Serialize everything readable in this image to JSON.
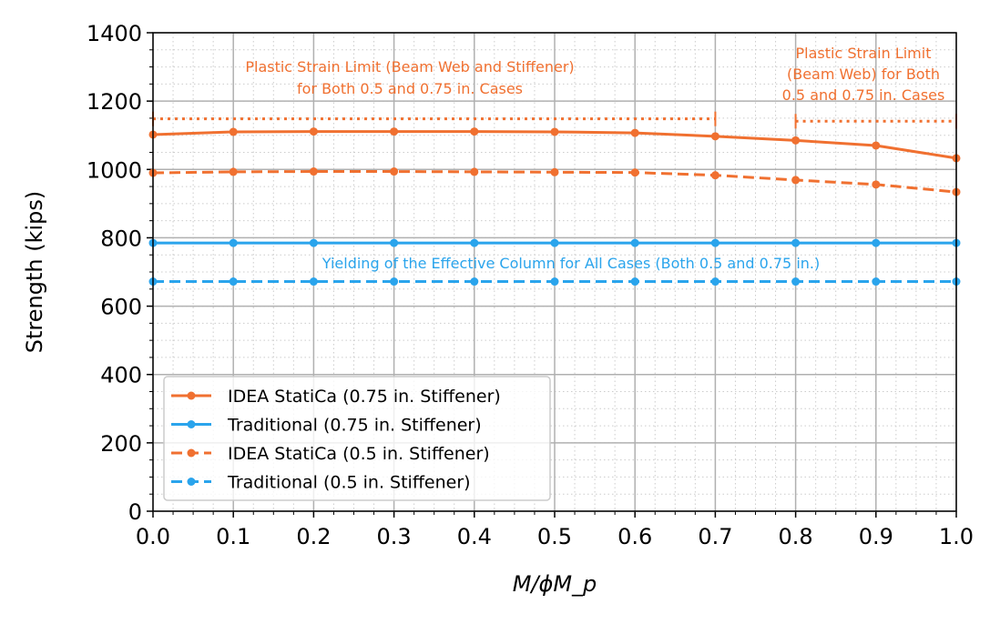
{
  "chart_data": {
    "type": "line",
    "xlabel": "M/ϕM_p",
    "ylabel": "Strength (kips)",
    "xlim": [
      0,
      1
    ],
    "ylim": [
      0,
      1400
    ],
    "xticks": [
      "0.0",
      "0.1",
      "0.2",
      "0.3",
      "0.4",
      "0.5",
      "0.6",
      "0.7",
      "0.8",
      "0.9",
      "1.0"
    ],
    "yticks": [
      "0",
      "200",
      "400",
      "600",
      "800",
      "1000",
      "1200",
      "1400"
    ],
    "grid": "major and minor",
    "legend_position": "lower-left",
    "x": [
      0,
      0.1,
      0.2,
      0.3,
      0.4,
      0.5,
      0.6,
      0.7,
      0.8,
      0.9,
      1.0
    ],
    "series": [
      {
        "name": "IDEA StatiCa (0.75 in. Stiffener)",
        "color": "#f07030",
        "style": "solid",
        "values": [
          1102,
          1110,
          1111,
          1111,
          1111,
          1110,
          1107,
          1097,
          1085,
          1070,
          1033
        ]
      },
      {
        "name": "Traditional (0.75 in. Stiffener)",
        "color": "#2aa4ec",
        "style": "solid",
        "values": [
          785,
          785,
          785,
          785,
          785,
          785,
          785,
          785,
          785,
          785,
          785
        ]
      },
      {
        "name": "IDEA StatiCa (0.5 in. Stiffener)",
        "color": "#f07030",
        "style": "dashed",
        "values": [
          990,
          993,
          994,
          994,
          993,
          992,
          991,
          983,
          969,
          956,
          934
        ]
      },
      {
        "name": "Traditional (0.5 in. Stiffener)",
        "color": "#2aa4ec",
        "style": "dashed",
        "values": [
          672,
          672,
          672,
          672,
          672,
          672,
          672,
          672,
          672,
          672,
          672
        ]
      }
    ],
    "limit_lines": [
      {
        "x": [
          0,
          0.7
        ],
        "y": 1148,
        "color": "#f07030",
        "style": "dotted"
      },
      {
        "x": [
          0.8,
          1.0
        ],
        "y": 1141,
        "color": "#f07030",
        "style": "dotted"
      }
    ],
    "annotations": [
      {
        "lines": [
          "Plastic Strain Limit (Beam Web and Stiffener)",
          "for Both 0.5 and 0.75 in. Cases"
        ],
        "color": "#f07030"
      },
      {
        "lines": [
          "Plastic Strain Limit",
          "(Beam Web) for Both",
          "0.5 and 0.75 in. Cases"
        ],
        "color": "#f07030"
      },
      {
        "lines": [
          "Yielding of the Effective Column for All Cases (Both 0.5 and 0.75 in.)"
        ],
        "color": "#2aa4ec"
      }
    ]
  }
}
